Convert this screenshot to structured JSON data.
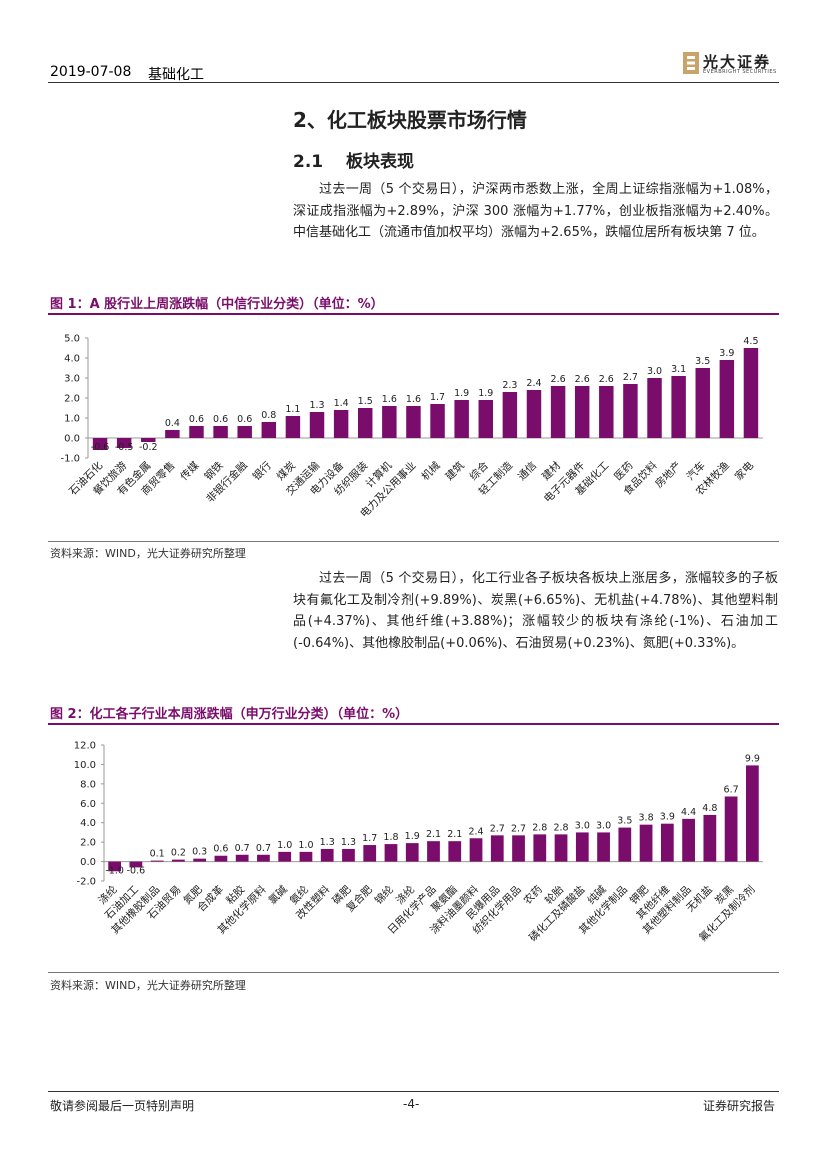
{
  "header": {
    "date": "2019-07-08",
    "sector": "基础化工",
    "logo_cn": "光大证券",
    "logo_en": "EVERBRIGHT SECURITIES"
  },
  "section": {
    "title": "2、化工板块股票市场行情",
    "subsection": "2.1　 板块表现",
    "para1": "过去一周（5 个交易日），沪深两市悉数上涨，全周上证综指涨幅为+1.08%，深证成指涨幅为+2.89%，沪深 300 涨幅为+1.77%，创业板指涨幅为+2.40%。中信基础化工（流通市值加权平均）涨幅为+2.65%，跌幅位居所有板块第 7 位。",
    "para2": "过去一周（5 个交易日），化工行业各子板块各板块上涨居多，涨幅较多的子板块有氟化工及制冷剂(+9.89%)、炭黑(+6.65%)、无机盐(+4.78%)、其他塑料制品(+4.37%)、其他纤维(+3.88%)；涨幅较少的板块有涤纶(-1%)、石油加工(-0.64%)、其他橡胶制品(+0.06%)、石油贸易(+0.23%)、氮肥(+0.33%)。"
  },
  "figure1": {
    "title": "图 1：A 股行业上周涨跌幅（中信行业分类）（单位：%）",
    "source": "资料来源：WIND，光大证券研究所整理"
  },
  "figure2": {
    "title": "图 2：化工各子行业本周涨跌幅（申万行业分类）（单位：%）",
    "source": "资料来源：WIND，光大证券研究所整理"
  },
  "chart_data": [
    {
      "type": "bar",
      "title": "A 股行业上周涨跌幅（中信行业分类）（单位：%）",
      "categories": [
        "石油石化",
        "餐饮旅游",
        "有色金属",
        "商贸零售",
        "传媒",
        "钢铁",
        "非银行金融",
        "银行",
        "煤炭",
        "交通运输",
        "电力设备",
        "纺织服装",
        "计算机",
        "电力及公用事业",
        "机械",
        "建筑",
        "综合",
        "轻工制造",
        "通信",
        "建材",
        "电子元器件",
        "基础化工",
        "医药",
        "食品饮料",
        "房地产",
        "汽车",
        "农林牧渔",
        "家电"
      ],
      "values": [
        -0.6,
        -0.5,
        -0.2,
        0.4,
        0.6,
        0.6,
        0.6,
        0.8,
        1.1,
        1.3,
        1.4,
        1.5,
        1.6,
        1.6,
        1.7,
        1.9,
        1.9,
        2.3,
        2.4,
        2.6,
        2.6,
        2.6,
        2.7,
        3.0,
        3.1,
        3.5,
        3.9,
        4.5
      ],
      "yticks": [
        "5.0",
        "4.0",
        "3.0",
        "2.0",
        "1.0",
        "0.0",
        "-1.0"
      ],
      "ylim": [
        -1.0,
        5.0
      ],
      "bar_color": "#7a0d6b"
    },
    {
      "type": "bar",
      "title": "化工各子行业本周涨跌幅（申万行业分类）（单位：%）",
      "categories": [
        "涤纶",
        "石油加工",
        "其他橡胶制品",
        "石油贸易",
        "氮肥",
        "合成革",
        "粘胶",
        "其他化学原料",
        "氯碱",
        "氨纶",
        "改性塑料",
        "磷肥",
        "复合肥",
        "锦纶",
        "涤纶",
        "日用化学产品",
        "聚氨酯",
        "涂料油墨颜料",
        "民爆用品",
        "纺织化学用品",
        "农药",
        "轮胎",
        "磷化工及磷酸盐",
        "纯碱",
        "其他化学制品",
        "钾肥",
        "其他纤维",
        "其他塑料制品",
        "无机盐",
        "炭黑",
        "氟化工及制冷剂"
      ],
      "values": [
        -1.0,
        -0.6,
        0.1,
        0.2,
        0.3,
        0.6,
        0.7,
        0.7,
        1.0,
        1.0,
        1.3,
        1.3,
        1.7,
        1.8,
        1.9,
        2.1,
        2.1,
        2.4,
        2.7,
        2.7,
        2.8,
        2.8,
        3.0,
        3.0,
        3.5,
        3.8,
        3.9,
        4.4,
        4.8,
        6.7,
        9.9
      ],
      "yticks": [
        "12.0",
        "10.0",
        "8.0",
        "6.0",
        "4.0",
        "2.0",
        "0.0",
        "-2.0"
      ],
      "ylim": [
        -2.0,
        12.0
      ],
      "bar_color": "#7a0d6b"
    }
  ],
  "footer": {
    "left": "敬请参阅最后一页特别声明",
    "center": "-4-",
    "right": "证券研究报告"
  }
}
